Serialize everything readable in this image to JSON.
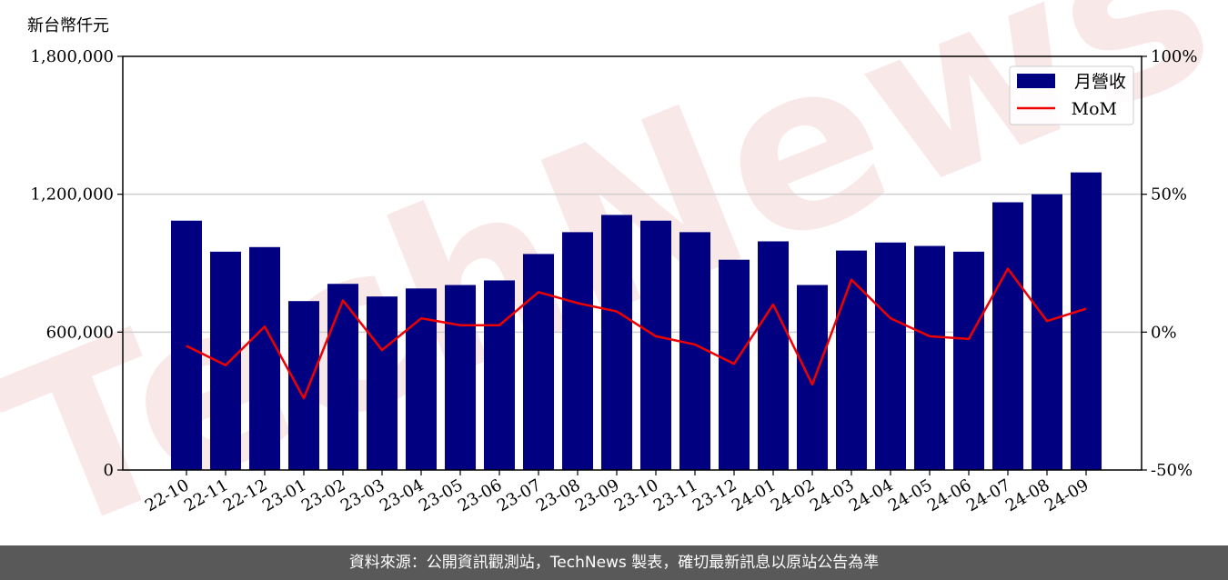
{
  "chart_data": {
    "type": "bar",
    "unit_label": "新台幣仟元",
    "categories": [
      "22-10",
      "22-11",
      "22-12",
      "23-01",
      "23-02",
      "23-03",
      "23-04",
      "23-05",
      "23-06",
      "23-07",
      "23-08",
      "23-09",
      "23-10",
      "23-11",
      "23-12",
      "24-01",
      "24-02",
      "24-03",
      "24-04",
      "24-05",
      "24-06",
      "24-07",
      "24-08",
      "24-09"
    ],
    "series": [
      {
        "name": "月營收",
        "type": "bar",
        "axis": "left",
        "color": "#000080",
        "values": [
          1085000,
          950000,
          970000,
          735000,
          810000,
          755000,
          790000,
          805000,
          825000,
          940000,
          1035000,
          1110000,
          1085000,
          1035000,
          915000,
          995000,
          805000,
          955000,
          990000,
          975000,
          950000,
          1165000,
          1200000,
          1295000
        ]
      },
      {
        "name": "MoM",
        "type": "line",
        "axis": "right",
        "color": "#ee0000",
        "values": [
          -5.0,
          -12.0,
          2.0,
          -24.0,
          11.5,
          -6.5,
          5.0,
          2.5,
          2.5,
          14.5,
          10.5,
          7.5,
          -1.5,
          -4.5,
          -11.5,
          10.0,
          -19.0,
          19.0,
          5.0,
          -1.5,
          -2.5,
          23.0,
          4.0,
          8.5
        ]
      }
    ],
    "y_left": {
      "ylim": [
        0,
        1800000
      ],
      "ticks": [
        0,
        600000,
        1200000,
        1800000
      ],
      "tick_labels": [
        "0",
        "600,000",
        "1,200,000",
        "1,800,000"
      ]
    },
    "y_right": {
      "ylim": [
        -50,
        100
      ],
      "ticks": [
        -50,
        0,
        50,
        100
      ],
      "tick_labels": [
        "-50%",
        "0%",
        "50%",
        "100%"
      ]
    },
    "grid": true,
    "legend": "top-right"
  },
  "watermark": "TechNews",
  "footer": {
    "text": "資料來源：公開資訊觀測站，TechNews 製表，確切最新訊息以原站公告為準"
  }
}
